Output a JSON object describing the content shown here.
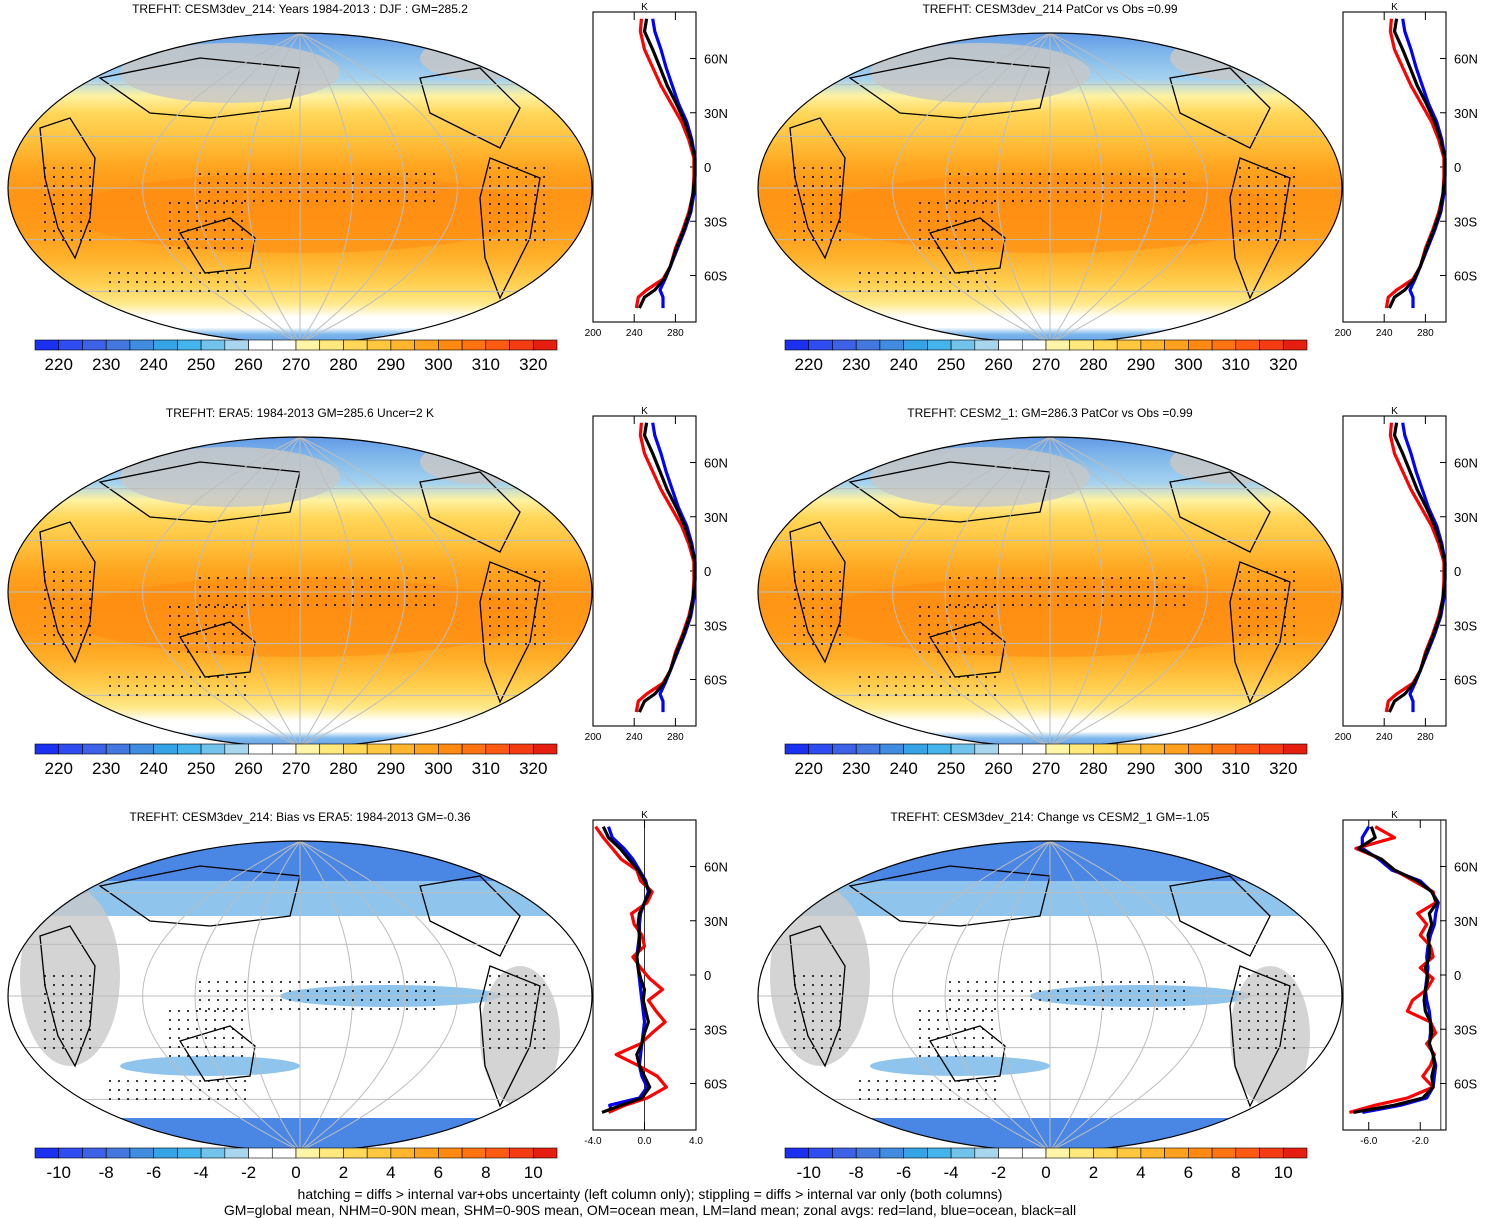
{
  "panels": [
    {
      "title": "TREFHT: CESM3dev_214: Years 1984-2013 : DJF : GM=285.2",
      "kind": "abs",
      "col": 0,
      "row": 0,
      "stip": true,
      "hatch": true
    },
    {
      "title": "TREFHT: CESM3dev_214 PatCor vs Obs =0.99",
      "kind": "abs",
      "col": 1,
      "row": 0,
      "stip": true,
      "hatch": false
    },
    {
      "title": "TREFHT: ERA5: 1984-2013 GM=285.6 Uncer=2 K",
      "kind": "abs",
      "col": 0,
      "row": 1,
      "stip": true,
      "hatch": true
    },
    {
      "title": "TREFHT: CESM2_1: GM=286.3 PatCor vs Obs =0.99",
      "kind": "abs",
      "col": 1,
      "row": 1,
      "stip": true,
      "hatch": false
    },
    {
      "title": "TREFHT: CESM3dev_214: Bias vs ERA5: 1984-2013 GM=-0.36",
      "kind": "diff",
      "col": 0,
      "row": 2,
      "stip": true,
      "hatch": true
    },
    {
      "title": "TREFHT: CESM3dev_214: Change vs CESM2_1 GM=-1.05",
      "kind": "diff",
      "col": 1,
      "row": 2,
      "stip": true,
      "hatch": false
    }
  ],
  "colorbars": {
    "abs": {
      "labels": [
        "220",
        "230",
        "240",
        "250",
        "260",
        "270",
        "280",
        "290",
        "300",
        "310",
        "320"
      ],
      "colors": [
        "#1a31f2",
        "#2e4cf0",
        "#3d62e8",
        "#4577e0",
        "#3f8ce0",
        "#35a3e6",
        "#45b4ec",
        "#72c3ec",
        "#a8d6ee",
        "#ffffff",
        "#ffffff",
        "#fff5a8",
        "#ffe97c",
        "#ffd857",
        "#ffc63f",
        "#ffb52d",
        "#ffa11d",
        "#ff8a12",
        "#ff7310",
        "#ff5a12",
        "#f43b12",
        "#e51f10"
      ]
    },
    "diff": {
      "labels": [
        "-10",
        "-8",
        "-6",
        "-4",
        "-2",
        "0",
        "2",
        "4",
        "6",
        "8",
        "10"
      ],
      "colors": [
        "#1a31f2",
        "#2e4cf0",
        "#3d62e8",
        "#4577e0",
        "#3f8ce0",
        "#35a3e6",
        "#45b4ec",
        "#72c3ec",
        "#a8d6ee",
        "#ffffff",
        "#ffffff",
        "#fff5a8",
        "#ffe97c",
        "#ffd857",
        "#ffc63f",
        "#ffb52d",
        "#ffa11d",
        "#ff8a12",
        "#ff7310",
        "#ff5a12",
        "#f43b12",
        "#e51f10"
      ]
    }
  },
  "zonal": {
    "units": "K",
    "lat_labels": [
      "60N",
      "30N",
      "0",
      "30S",
      "60S"
    ],
    "abs_ticks": [
      "200",
      "240",
      "280"
    ],
    "bias_ticks": [
      "-4.0",
      "0.0",
      "4.0"
    ],
    "change_ticks": [
      "-6.0",
      "-2.0"
    ],
    "legend_colors": {
      "land": "#ff0000",
      "ocean": "#0000ff",
      "all": "#000000"
    },
    "abs_series": {
      "lat": [
        82,
        75,
        65,
        55,
        45,
        35,
        25,
        15,
        5,
        -5,
        -15,
        -25,
        -35,
        -45,
        -55,
        -62,
        -68,
        -72,
        -78
      ],
      "land": [
        247,
        246,
        250,
        258,
        266,
        276,
        286,
        293,
        298,
        298,
        297,
        293,
        287,
        280,
        275,
        268,
        252,
        244,
        242
      ],
      "ocean": [
        258,
        260,
        266,
        271,
        277,
        283,
        291,
        296,
        299,
        299,
        298,
        295,
        289,
        282,
        275,
        270,
        265,
        268,
        268
      ],
      "all": [
        252,
        250,
        258,
        265,
        272,
        281,
        289,
        295,
        299,
        299,
        297,
        294,
        288,
        281,
        275,
        269,
        260,
        250,
        245
      ]
    },
    "bias_series": {
      "lat": [
        82,
        76,
        70,
        64,
        58,
        52,
        46,
        40,
        34,
        28,
        22,
        16,
        10,
        4,
        -2,
        -8,
        -14,
        -20,
        -26,
        -32,
        -38,
        -44,
        -50,
        -56,
        -62,
        -68,
        -72,
        -76
      ],
      "land": [
        -3.8,
        -3.2,
        -2.5,
        -1.8,
        -0.6,
        -0.3,
        0.6,
        0.2,
        -1.0,
        -0.8,
        -0.2,
        0.0,
        -0.9,
        -0.3,
        0.4,
        1.4,
        0.3,
        0.9,
        1.6,
        0.6,
        -0.3,
        -2.2,
        -0.5,
        1.0,
        1.7,
        0.2,
        -1.5,
        -2.8
      ],
      "ocean": [
        -2.8,
        -2.5,
        -1.6,
        -0.9,
        -0.4,
        0.1,
        0.3,
        0.0,
        -0.3,
        -0.4,
        -0.4,
        -0.5,
        -0.6,
        -0.5,
        -0.4,
        -0.3,
        -0.2,
        -0.1,
        0.0,
        -0.1,
        -0.2,
        -0.3,
        -0.4,
        -0.2,
        0.2,
        -0.4,
        -2.7,
        -2.5
      ],
      "all": [
        -3.2,
        -2.8,
        -1.9,
        -1.2,
        -0.5,
        0.0,
        0.4,
        0.0,
        -0.4,
        -0.5,
        -0.4,
        -0.4,
        -0.6,
        -0.5,
        -0.3,
        0.0,
        -0.1,
        0.1,
        0.3,
        0.0,
        -0.2,
        -0.6,
        -0.4,
        0.0,
        0.4,
        -0.2,
        -1.8,
        -3.3
      ]
    },
    "change_series": {
      "lat": [
        82,
        76,
        70,
        64,
        58,
        52,
        46,
        40,
        34,
        28,
        22,
        16,
        10,
        4,
        -2,
        -8,
        -14,
        -20,
        -26,
        -32,
        -38,
        -44,
        -50,
        -56,
        -62,
        -68,
        -72,
        -76
      ],
      "land": [
        -5.5,
        -4.0,
        -7.0,
        -5.0,
        -4.0,
        -2.5,
        -1.0,
        -0.8,
        -2.2,
        -1.5,
        -2.0,
        -1.2,
        -1.0,
        -2.0,
        -1.0,
        -1.5,
        -2.6,
        -3.0,
        -1.2,
        -0.8,
        -1.5,
        -0.9,
        -1.2,
        -1.8,
        -1.0,
        -3.0,
        -5.5,
        -7.5
      ],
      "ocean": [
        -6.0,
        -6.5,
        -6.5,
        -5.2,
        -4.2,
        -2.0,
        -1.1,
        -0.6,
        -0.8,
        -0.9,
        -1.2,
        -1.4,
        -1.5,
        -1.4,
        -1.5,
        -1.6,
        -1.5,
        -1.3,
        -1.2,
        -1.2,
        -1.3,
        -1.0,
        -0.8,
        -0.9,
        -1.0,
        -1.5,
        -3.5,
        -6.5
      ],
      "all": [
        -5.8,
        -5.5,
        -6.8,
        -5.0,
        -4.0,
        -2.2,
        -1.1,
        -0.7,
        -1.3,
        -1.1,
        -1.4,
        -1.3,
        -1.3,
        -1.6,
        -1.4,
        -1.6,
        -1.7,
        -1.6,
        -1.2,
        -1.1,
        -1.3,
        -1.0,
        -0.9,
        -1.1,
        -1.0,
        -1.8,
        -4.0,
        -7.2
      ]
    }
  },
  "footer": {
    "line1": "hatching = diffs > internal var+obs uncertainty (left column only); stippling = diffs > internal var only (both columns)",
    "line2": "GM=global mean, NHM=0-90N mean, SHM=0-90S mean, OM=ocean mean, LM=land mean; zonal avgs: red=land, blue=ocean, black=all"
  }
}
